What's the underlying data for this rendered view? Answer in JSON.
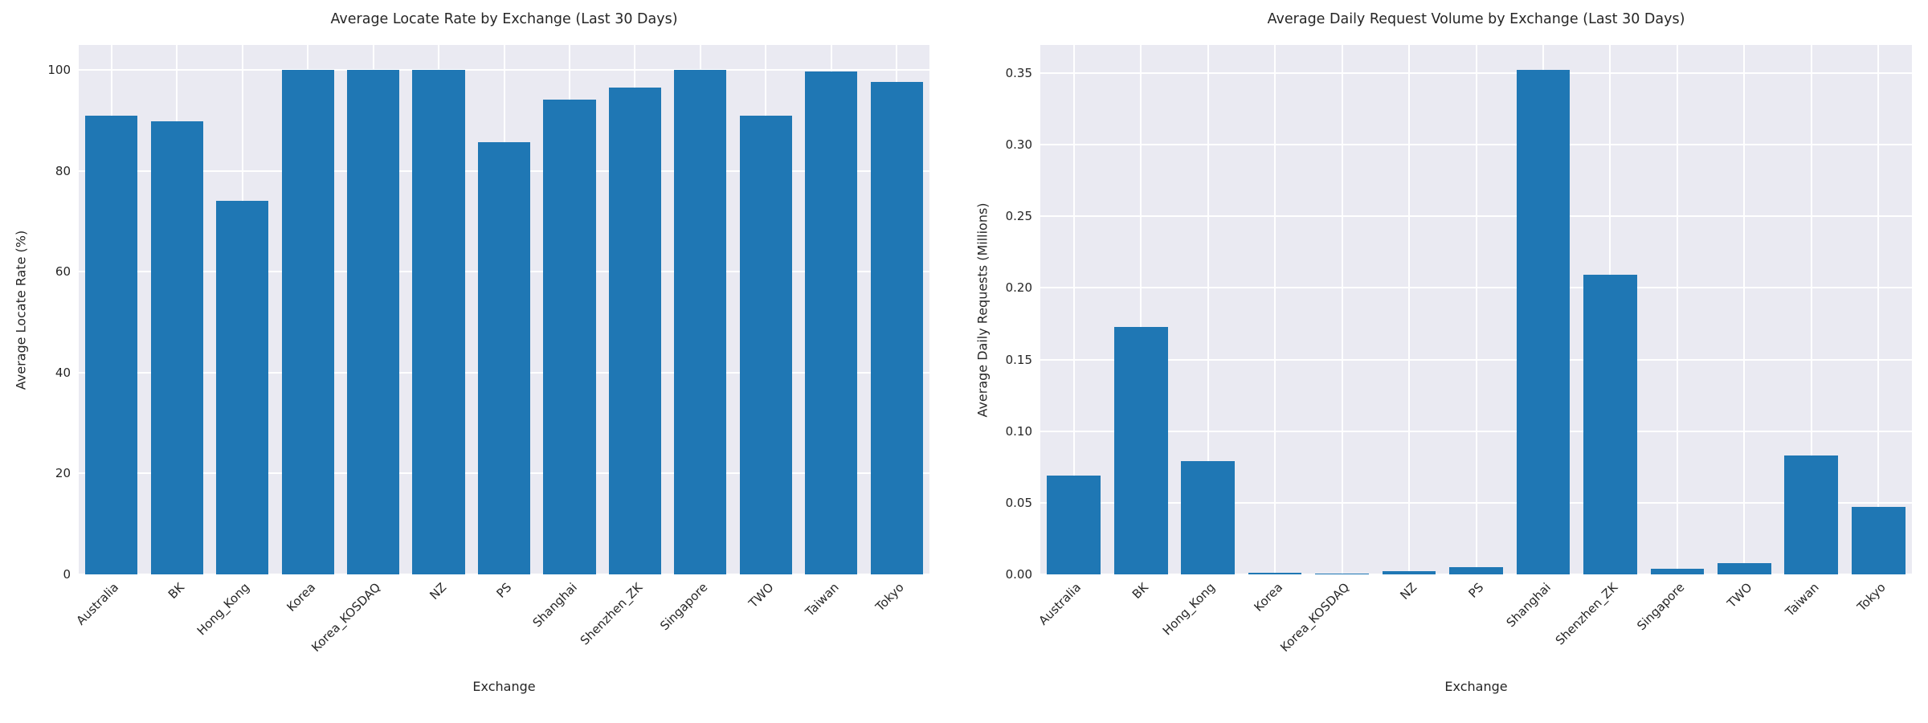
{
  "colors": {
    "bar": "#1f77b4",
    "plot_background": "#eaeaf2",
    "gridline": "#ffffff",
    "text": "#262626",
    "figure_background": "#ffffff"
  },
  "chart_data": [
    {
      "type": "bar",
      "title": "Average Locate Rate by Exchange (Last 30 Days)",
      "xlabel": "Exchange",
      "ylabel": "Average Locate Rate (%)",
      "categories": [
        "Australia",
        "BK",
        "Hong_Kong",
        "Korea",
        "Korea_KOSDAQ",
        "NZ",
        "PS",
        "Shanghai",
        "Shenzhen_ZK",
        "Singapore",
        "TWO",
        "Taiwan",
        "Tokyo"
      ],
      "values": [
        91.0,
        89.9,
        74.1,
        100.0,
        100.0,
        100.0,
        85.7,
        94.1,
        96.5,
        100.0,
        90.9,
        99.7,
        97.6
      ],
      "ytick_values": [
        0,
        20,
        40,
        60,
        80,
        100
      ],
      "ytick_labels": [
        "0",
        "20",
        "40",
        "60",
        "80",
        "100"
      ],
      "ylim": [
        0,
        105
      ],
      "grid": true,
      "legend_position": "none",
      "xtick_rotation_deg": 45
    },
    {
      "type": "bar",
      "title": "Average Daily Request Volume by Exchange (Last 30 Days)",
      "xlabel": "Exchange",
      "ylabel": "Average Daily Requests (Millions)",
      "categories": [
        "Australia",
        "BK",
        "Hong_Kong",
        "Korea",
        "Korea_KOSDAQ",
        "NZ",
        "PS",
        "Shanghai",
        "Shenzhen_ZK",
        "Singapore",
        "TWO",
        "Taiwan",
        "Tokyo"
      ],
      "values": [
        0.069,
        0.173,
        0.079,
        0.001,
        0.0006,
        0.002,
        0.005,
        0.352,
        0.209,
        0.004,
        0.008,
        0.083,
        0.047
      ],
      "ytick_values": [
        0.0,
        0.05,
        0.1,
        0.15,
        0.2,
        0.25,
        0.3,
        0.35
      ],
      "ytick_labels": [
        "0.00",
        "0.05",
        "0.10",
        "0.15",
        "0.20",
        "0.25",
        "0.30",
        "0.35"
      ],
      "ylim": [
        0,
        0.3696
      ],
      "grid": true,
      "legend_position": "none",
      "xtick_rotation_deg": 45
    }
  ]
}
